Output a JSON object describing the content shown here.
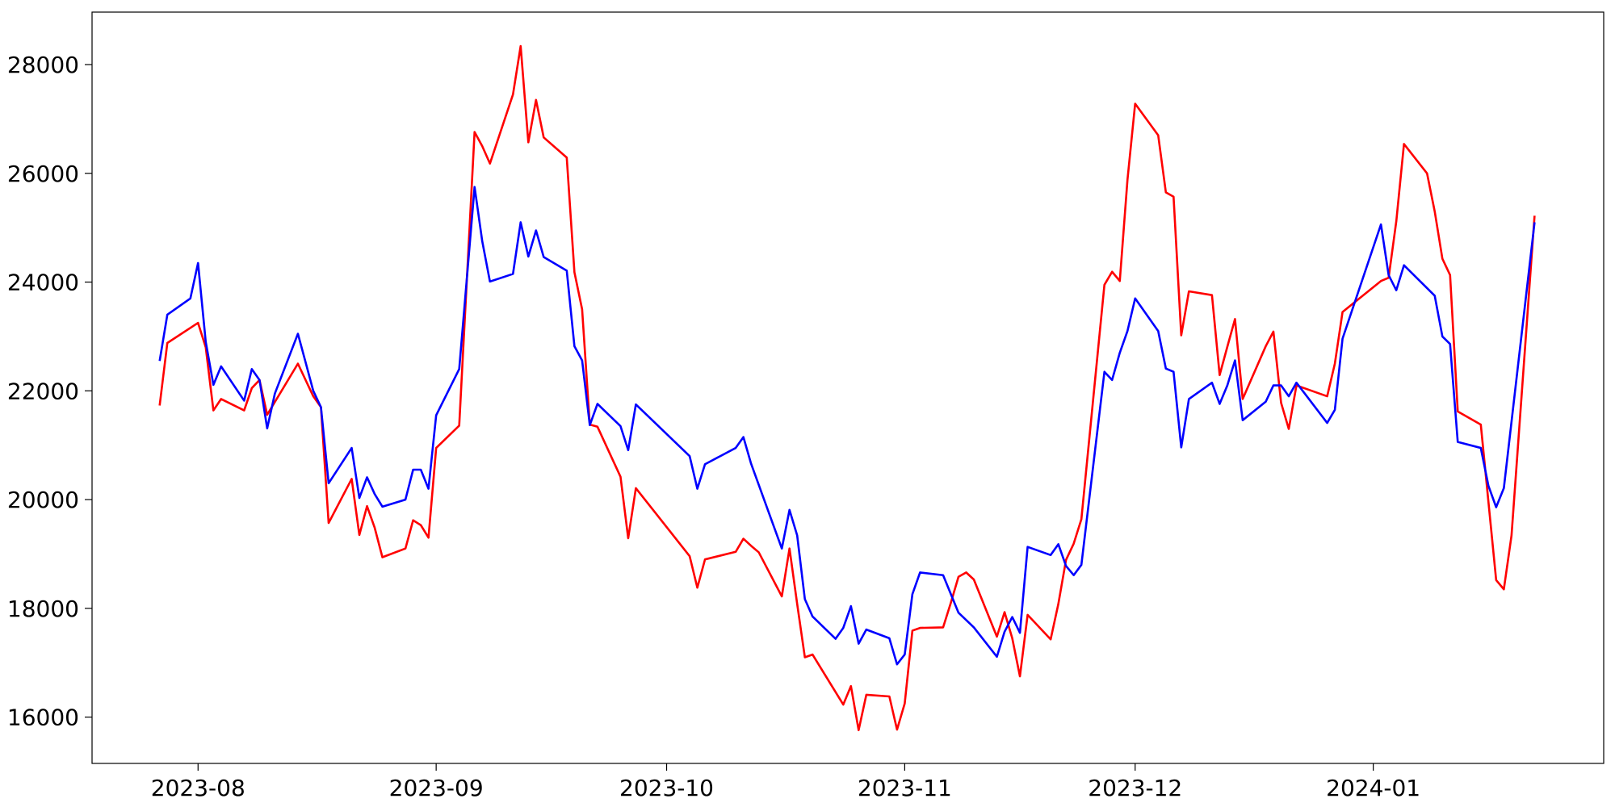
{
  "chart_data": {
    "type": "line",
    "xlim": [
      -13.8,
      183.0
    ],
    "ylim": [
      15148,
      28965
    ],
    "xticks": [
      {
        "value": 0,
        "label": "2023-08"
      },
      {
        "value": 31,
        "label": "2023-09"
      },
      {
        "value": 61,
        "label": "2023-10"
      },
      {
        "value": 92,
        "label": "2023-11"
      },
      {
        "value": 122,
        "label": "2023-12"
      },
      {
        "value": 153,
        "label": "2024-01"
      }
    ],
    "yticks": [
      16000,
      18000,
      20000,
      22000,
      24000,
      26000,
      28000
    ],
    "series": [
      {
        "color": "#ff0000",
        "x": [
          -5,
          -4,
          0,
          1,
          2,
          3,
          6,
          7,
          8,
          9,
          13,
          15,
          16,
          17,
          20,
          21,
          22,
          23,
          24,
          27,
          28,
          29,
          30,
          31,
          34,
          36,
          37,
          38,
          41,
          42,
          43,
          44,
          45,
          48,
          49,
          50,
          51,
          52,
          55,
          56,
          57,
          64,
          65,
          66,
          70,
          71,
          72,
          73,
          76,
          77,
          78,
          79,
          80,
          84,
          85,
          86,
          87,
          90,
          91,
          92,
          93,
          94,
          97,
          98,
          99,
          100,
          101,
          104,
          105,
          106,
          107,
          108,
          111,
          112,
          113,
          114,
          115,
          118,
          119,
          120,
          121,
          122,
          125,
          126,
          127,
          128,
          129,
          132,
          133,
          134,
          135,
          136,
          139,
          140,
          141,
          142,
          143,
          147,
          148,
          149,
          154,
          155,
          156,
          157,
          160,
          161,
          162,
          163,
          164,
          167,
          169,
          170,
          171,
          174
        ],
        "values": [
          21730,
          22880,
          23250,
          22800,
          21640,
          21850,
          21640,
          22050,
          22200,
          21560,
          22500,
          21900,
          21700,
          19570,
          20380,
          19350,
          19880,
          19480,
          18940,
          19100,
          19620,
          19530,
          19300,
          20950,
          21360,
          26760,
          26500,
          26180,
          27450,
          28340,
          26570,
          27350,
          26660,
          26290,
          24180,
          23500,
          21380,
          21340,
          20420,
          19290,
          20210,
          18960,
          18380,
          18900,
          19040,
          19280,
          19150,
          19030,
          18220,
          19100,
          18080,
          17100,
          17150,
          16230,
          16570,
          15760,
          16410,
          16380,
          15770,
          16250,
          17590,
          17640,
          17650,
          18100,
          18580,
          18660,
          18530,
          17480,
          17930,
          17450,
          16750,
          17880,
          17430,
          18080,
          18890,
          19190,
          19640,
          23950,
          24190,
          24020,
          25880,
          27280,
          26700,
          25650,
          25570,
          23020,
          23830,
          23760,
          22290,
          22810,
          23320,
          21850,
          22820,
          23090,
          21780,
          21300,
          22100,
          21900,
          22500,
          23450,
          24020,
          24080,
          25120,
          26540,
          26000,
          25300,
          24430,
          24130,
          21620,
          21380,
          18520,
          18350,
          19340,
          25220
        ]
      },
      {
        "color": "#0000ff",
        "x": [
          -5,
          -4,
          -1,
          0,
          1,
          2,
          3,
          6,
          7,
          8,
          9,
          10,
          13,
          15,
          16,
          17,
          20,
          21,
          22,
          23,
          24,
          27,
          28,
          29,
          30,
          31,
          34,
          36,
          37,
          38,
          41,
          42,
          43,
          44,
          45,
          48,
          49,
          50,
          51,
          52,
          55,
          56,
          57,
          64,
          65,
          66,
          70,
          71,
          72,
          76,
          77,
          78,
          79,
          80,
          83,
          84,
          85,
          86,
          87,
          90,
          91,
          92,
          93,
          94,
          97,
          99,
          101,
          104,
          105,
          106,
          107,
          108,
          111,
          112,
          113,
          114,
          115,
          118,
          119,
          120,
          121,
          122,
          125,
          126,
          127,
          128,
          129,
          132,
          133,
          134,
          135,
          136,
          139,
          140,
          141,
          142,
          143,
          147,
          148,
          149,
          154,
          155,
          156,
          157,
          161,
          162,
          163,
          164,
          167,
          168,
          169,
          170,
          174
        ],
        "values": [
          22550,
          23400,
          23700,
          24350,
          22900,
          22110,
          22450,
          21820,
          22400,
          22200,
          21310,
          21950,
          23050,
          22000,
          21700,
          20300,
          20950,
          20030,
          20410,
          20100,
          19870,
          20000,
          20550,
          20550,
          20200,
          21550,
          22400,
          25750,
          24750,
          24010,
          24150,
          25100,
          24470,
          24950,
          24460,
          24210,
          22820,
          22560,
          21370,
          21760,
          21350,
          20910,
          21750,
          20800,
          20200,
          20650,
          20950,
          21150,
          20660,
          19100,
          19810,
          19340,
          18170,
          17850,
          17440,
          17640,
          18040,
          17350,
          17610,
          17450,
          16970,
          17150,
          18260,
          18660,
          18610,
          17920,
          17650,
          17110,
          17570,
          17840,
          17550,
          19130,
          18980,
          19180,
          18780,
          18610,
          18800,
          22350,
          22200,
          22700,
          23100,
          23700,
          23100,
          22410,
          22350,
          20960,
          21850,
          22150,
          21760,
          22100,
          22560,
          21460,
          21800,
          22100,
          22100,
          21900,
          22150,
          21410,
          21650,
          22960,
          25060,
          24130,
          23850,
          24310,
          23750,
          23000,
          22860,
          21060,
          20950,
          20250,
          19860,
          20210,
          25100
        ]
      }
    ]
  }
}
